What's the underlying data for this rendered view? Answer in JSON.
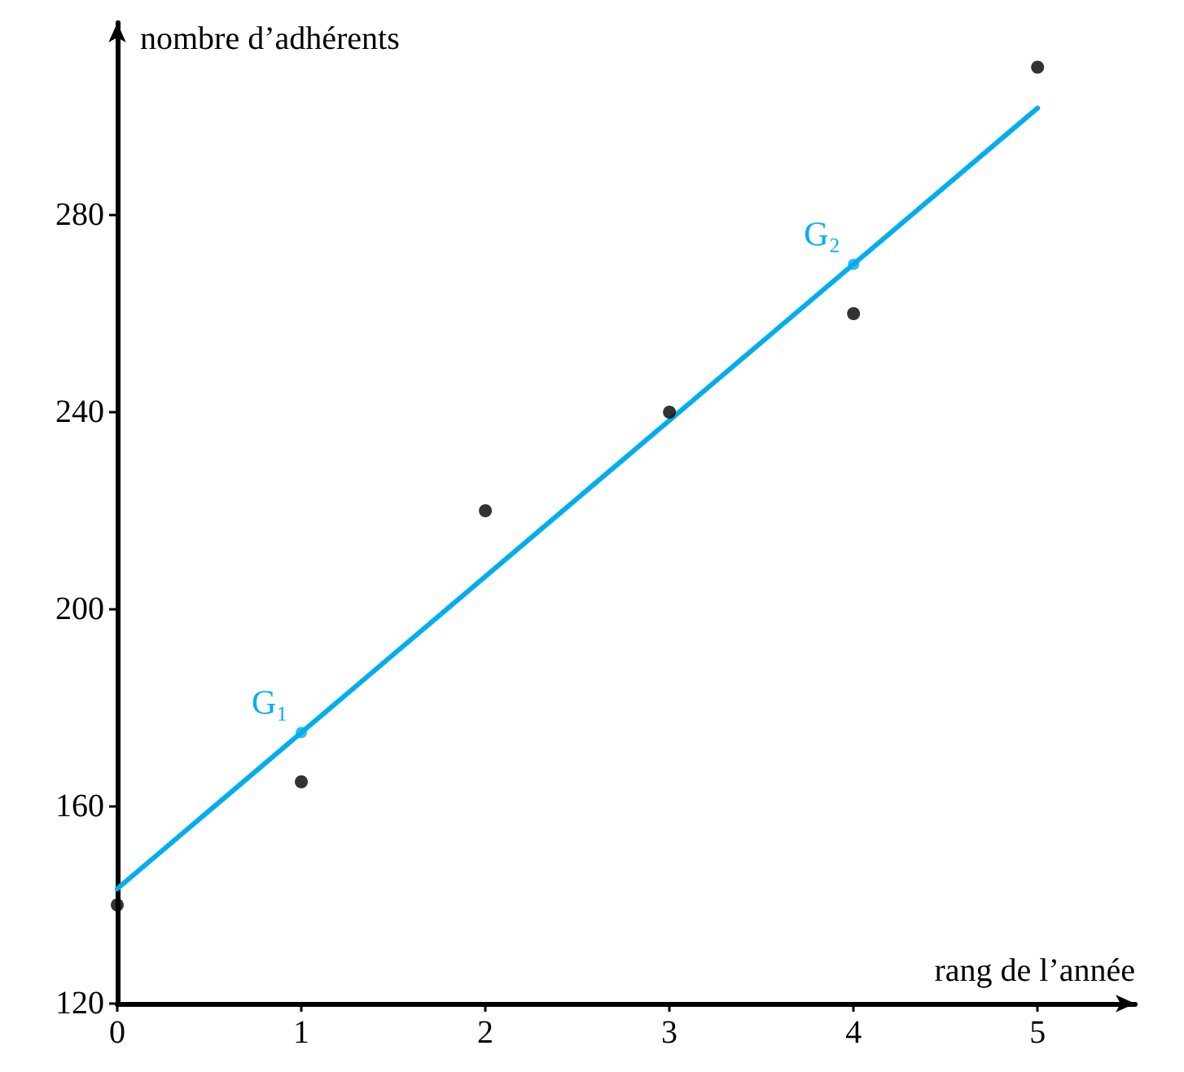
{
  "chart_data": {
    "type": "scatter",
    "xlabel": "rang de l’année",
    "ylabel": "nombre d’adhérents",
    "xlim": [
      0,
      5.53
    ],
    "ylim": [
      120,
      319
    ],
    "xticks": [
      0,
      1,
      2,
      3,
      4,
      5
    ],
    "yticks": [
      120,
      160,
      200,
      240,
      280
    ],
    "grid": false,
    "marker": "circle",
    "series": [
      {
        "color": "#000000",
        "x": [
          0,
          1,
          2,
          3,
          4,
          5
        ],
        "values": [
          140,
          165,
          220,
          240,
          260,
          310
        ]
      },
      {
        "type": "line",
        "color": "#00aeef",
        "marker": "none",
        "x": [
          0,
          5
        ],
        "values": [
          143.3,
          301.7
        ]
      },
      {
        "color": "#00aeef",
        "x": [
          1,
          4
        ],
        "values": [
          175,
          270
        ]
      }
    ],
    "annotations": [
      {
        "text": "G₁",
        "x": 1,
        "y": 175
      },
      {
        "text": "G₂",
        "x": 4,
        "y": 270
      }
    ]
  }
}
